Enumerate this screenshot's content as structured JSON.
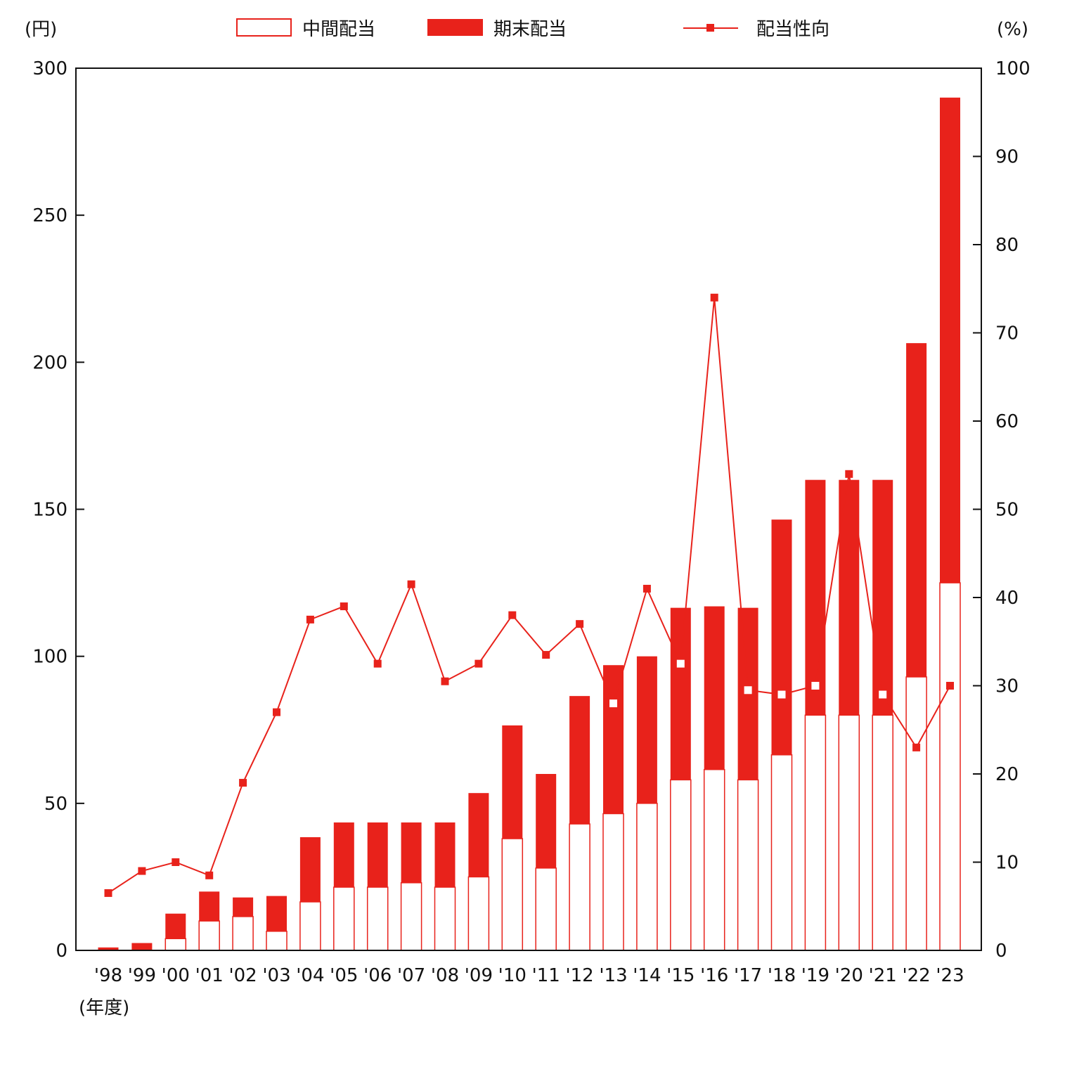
{
  "chart_data": {
    "type": "bar",
    "stacked": true,
    "y_unit_left": "(円)",
    "y_unit_right": "(%)",
    "x_unit": "(年度)",
    "categories": [
      "'98",
      "'99",
      "'00",
      "'01",
      "'02",
      "'03",
      "'04",
      "'05",
      "'06",
      "'07",
      "'08",
      "'09",
      "'10",
      "'11",
      "'12",
      "'13",
      "'14",
      "'15",
      "'16",
      "'17",
      "'18",
      "'19",
      "'20",
      "'21",
      "'22",
      "'23"
    ],
    "series": [
      {
        "name": "中間配当",
        "kind": "bar",
        "color": "#ffffff",
        "stroke": "#e8221b",
        "values": [
          0,
          0,
          4,
          10,
          11.5,
          6.5,
          16.5,
          21.5,
          21.5,
          23,
          21.5,
          25,
          38,
          28,
          43,
          46.5,
          50,
          58,
          61.5,
          58,
          66.5,
          80,
          80,
          80,
          93,
          125
        ]
      },
      {
        "name": "期末配当",
        "kind": "bar",
        "color": "#e8221b",
        "values": [
          1,
          2.5,
          8.5,
          10,
          6.5,
          12,
          22,
          22,
          22,
          20.5,
          22,
          28.5,
          38.5,
          32,
          43.5,
          50.5,
          50,
          58.5,
          55.5,
          58.5,
          80,
          80,
          80,
          80,
          113.5,
          165
        ]
      },
      {
        "name": "配当性向",
        "kind": "line",
        "axis": "right",
        "color": "#e8221b",
        "values": [
          6.5,
          9,
          10,
          8.5,
          19,
          27,
          37.5,
          39,
          32.5,
          41.5,
          30.5,
          32.5,
          38,
          33.5,
          37,
          28,
          41,
          32.5,
          74,
          29.5,
          29,
          30,
          54,
          29,
          23,
          30
        ]
      }
    ],
    "hollow_markers": [
      "'13",
      "'15",
      "'17",
      "'18",
      "'19",
      "'21"
    ],
    "ylim_left": [
      0,
      300
    ],
    "yticks_left": [
      "0",
      "50",
      "100",
      "150",
      "200",
      "250",
      "300"
    ],
    "ylim_right": [
      0,
      100
    ],
    "yticks_right": [
      "0",
      "10",
      "20",
      "30",
      "40",
      "50",
      "60",
      "70",
      "80",
      "90",
      "100"
    ],
    "legend_position": "top",
    "grid": false
  }
}
